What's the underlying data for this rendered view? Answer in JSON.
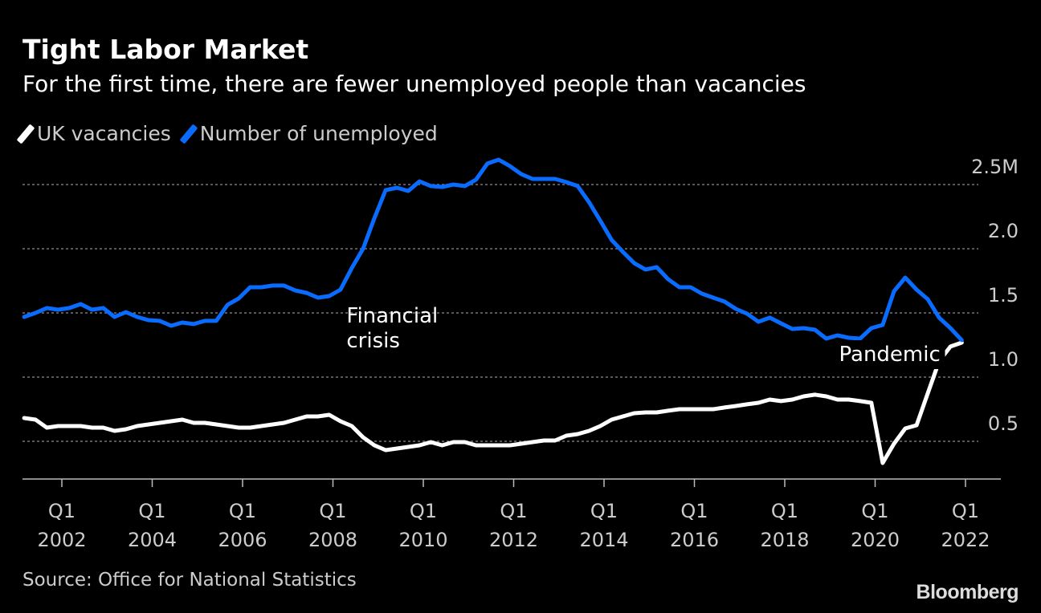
{
  "title": "Tight Labor Market",
  "subtitle": "For the first time, there are fewer unemployed people than vacancies",
  "source": "Source: Office for National Statistics",
  "logo": "Bloomberg",
  "chart_data": {
    "type": "line",
    "title": "Tight Labor Market",
    "subtitle": "For the first time, there are fewer unemployed people than vacancies",
    "xlabel": "",
    "ylabel": "",
    "legend_position": "top-left",
    "ylim": [
      0.2,
      2.6
    ],
    "xlim": [
      2001.15,
      2022.8
    ],
    "grid": true,
    "y_ticks": [
      {
        "value": 0.5,
        "label": "0.5"
      },
      {
        "value": 1.0,
        "label": "1.0"
      },
      {
        "value": 1.5,
        "label": "1.5"
      },
      {
        "value": 2.0,
        "label": "2.0"
      },
      {
        "value": 2.5,
        "label": "2.5M"
      }
    ],
    "x_ticks": [
      {
        "value": 2002,
        "q": "Q1",
        "year": "2002"
      },
      {
        "value": 2004,
        "q": "Q1",
        "year": "2004"
      },
      {
        "value": 2006,
        "q": "Q1",
        "year": "2006"
      },
      {
        "value": 2008,
        "q": "Q1",
        "year": "2008"
      },
      {
        "value": 2010,
        "q": "Q1",
        "year": "2010"
      },
      {
        "value": 2012,
        "q": "Q1",
        "year": "2012"
      },
      {
        "value": 2014,
        "q": "Q1",
        "year": "2014"
      },
      {
        "value": 2016,
        "q": "Q1",
        "year": "2016"
      },
      {
        "value": 2018,
        "q": "Q1",
        "year": "2018"
      },
      {
        "value": 2020,
        "q": "Q1",
        "year": "2020"
      },
      {
        "value": 2022,
        "q": "Q1",
        "year": "2022"
      }
    ],
    "x_start": 2001.167,
    "x_step": 0.25,
    "series": [
      {
        "name": "UK vacancies",
        "color": "#ffffff",
        "values": [
          0.681,
          0.669,
          0.606,
          0.619,
          0.619,
          0.619,
          0.606,
          0.606,
          0.581,
          0.594,
          0.619,
          0.631,
          0.644,
          0.656,
          0.669,
          0.644,
          0.644,
          0.631,
          0.619,
          0.606,
          0.606,
          0.619,
          0.631,
          0.644,
          0.669,
          0.694,
          0.694,
          0.706,
          0.656,
          0.619,
          0.531,
          0.469,
          0.431,
          0.444,
          0.456,
          0.469,
          0.494,
          0.469,
          0.494,
          0.494,
          0.469,
          0.469,
          0.469,
          0.469,
          0.481,
          0.494,
          0.506,
          0.506,
          0.544,
          0.556,
          0.581,
          0.619,
          0.669,
          0.694,
          0.719,
          0.725,
          0.725,
          0.738,
          0.75,
          0.75,
          0.75,
          0.75,
          0.763,
          0.775,
          0.788,
          0.8,
          0.825,
          0.813,
          0.825,
          0.85,
          0.863,
          0.85,
          0.825,
          0.825,
          0.813,
          0.8,
          0.331,
          0.481,
          0.6,
          0.625,
          0.875,
          1.125,
          1.238,
          1.269
        ]
      },
      {
        "name": "Number of unemployed",
        "color": "#0a6cff",
        "values": [
          1.469,
          1.5,
          1.538,
          1.525,
          1.538,
          1.569,
          1.525,
          1.538,
          1.469,
          1.506,
          1.469,
          1.444,
          1.438,
          1.4,
          1.425,
          1.413,
          1.438,
          1.438,
          1.563,
          1.613,
          1.7,
          1.7,
          1.713,
          1.713,
          1.675,
          1.656,
          1.619,
          1.631,
          1.681,
          1.85,
          2.0,
          2.238,
          2.456,
          2.475,
          2.45,
          2.525,
          2.488,
          2.481,
          2.5,
          2.488,
          2.538,
          2.663,
          2.694,
          2.644,
          2.581,
          2.544,
          2.544,
          2.544,
          2.519,
          2.488,
          2.363,
          2.219,
          2.069,
          1.975,
          1.888,
          1.838,
          1.856,
          1.763,
          1.7,
          1.7,
          1.65,
          1.619,
          1.588,
          1.531,
          1.494,
          1.431,
          1.463,
          1.419,
          1.375,
          1.381,
          1.369,
          1.3,
          1.325,
          1.306,
          1.3,
          1.381,
          1.406,
          1.669,
          1.775,
          1.681,
          1.606,
          1.463,
          1.381,
          1.288
        ]
      }
    ],
    "annotations": [
      {
        "text": [
          "Financial",
          "crisis"
        ],
        "x": 2008.3,
        "y": 1.5
      },
      {
        "text": [
          "Pandemic"
        ],
        "x": 2019.2,
        "y": 1.2
      }
    ]
  }
}
